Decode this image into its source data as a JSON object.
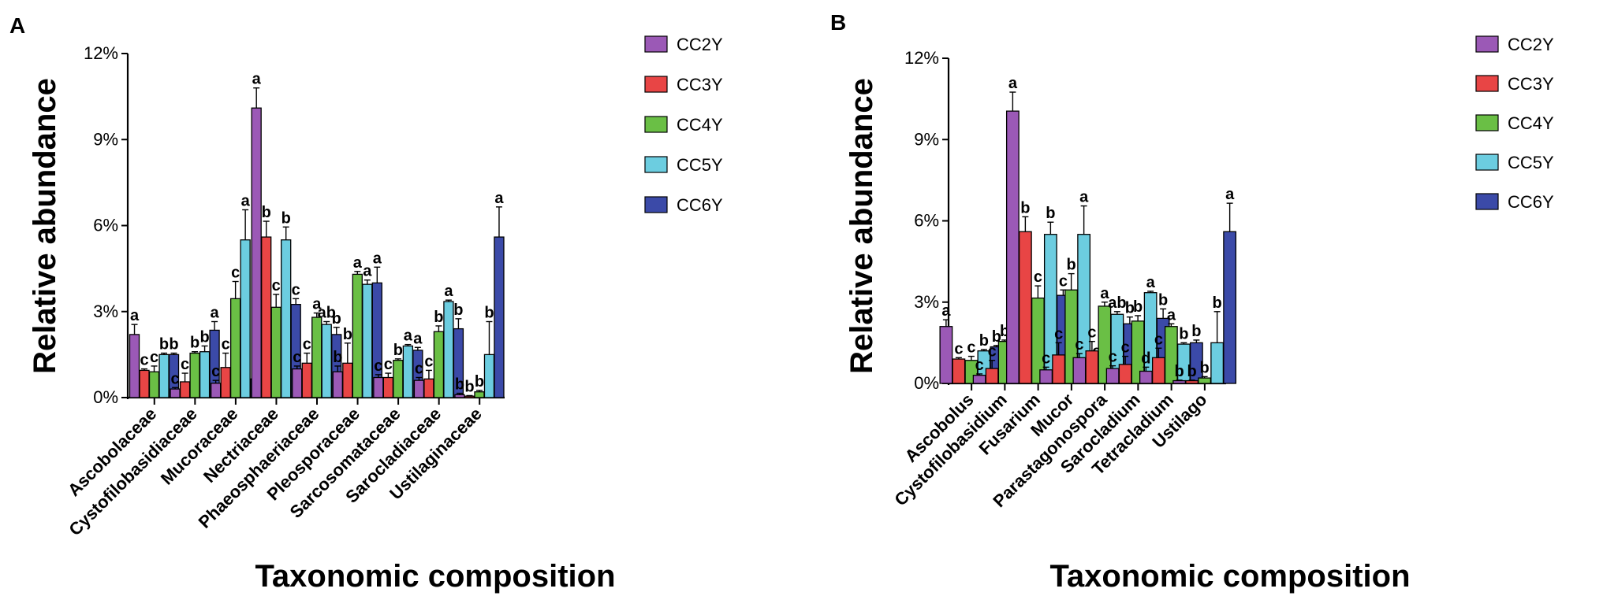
{
  "chart_data": [
    {
      "type": "bar",
      "panel_label": "A",
      "title": "",
      "xlabel": "Taxonomic composition",
      "ylabel": "Relative abundance",
      "ylim": [
        0,
        12
      ],
      "yticks": [
        0,
        3,
        6,
        9,
        12
      ],
      "ytick_labels": [
        "0%",
        "3%",
        "6%",
        "9%",
        "12%"
      ],
      "legend_position": "top-right",
      "categories": [
        "Ascobolaceae",
        "Cystofilobasidiaceae",
        "Mucoraceae",
        "Nectriaceae",
        "Phaeosphaeriaceae",
        "Pleosporaceae",
        "Sarcosomataceae",
        "Sarocladiaceae",
        "Ustilaginaceae"
      ],
      "series": [
        {
          "name": "CC2Y",
          "color": "#9b59b6",
          "values": [
            2.2,
            0.3,
            0.5,
            10.1,
            1.0,
            0.9,
            0.7,
            0.6,
            0.1
          ],
          "errors": [
            0.35,
            0.05,
            0.1,
            0.7,
            0.1,
            0.2,
            0.1,
            0.1,
            0.05
          ],
          "letters": [
            "a",
            "c",
            "c",
            "a",
            "c",
            "b",
            "c",
            "c",
            "b"
          ]
        },
        {
          "name": "CC3Y",
          "color": "#e84545",
          "values": [
            0.95,
            0.55,
            1.05,
            5.6,
            1.2,
            1.2,
            0.7,
            0.65,
            0.05
          ],
          "errors": [
            0.05,
            0.3,
            0.5,
            0.55,
            0.35,
            0.7,
            0.15,
            0.3,
            0.02
          ],
          "letters": [
            "c",
            "c",
            "c",
            "b",
            "c",
            "b",
            "c",
            "c",
            "b"
          ]
        },
        {
          "name": "CC4Y",
          "color": "#6abf45",
          "values": [
            0.9,
            1.55,
            3.45,
            3.15,
            2.8,
            4.3,
            1.3,
            2.3,
            0.2
          ],
          "errors": [
            0.2,
            0.05,
            0.6,
            0.45,
            0.15,
            0.1,
            0.05,
            0.2,
            0.05
          ],
          "letters": [
            "c",
            "b",
            "c",
            "c",
            "a",
            "a",
            "b",
            "b",
            "b"
          ]
        },
        {
          "name": "CC5Y",
          "color": "#6ccde0",
          "values": [
            1.5,
            1.6,
            5.5,
            5.5,
            2.55,
            3.95,
            1.8,
            3.35,
            1.5
          ],
          "errors": [
            0.05,
            0.2,
            1.05,
            0.45,
            0.1,
            0.15,
            0.05,
            0.05,
            1.15
          ],
          "letters": [
            "b",
            "b",
            "a",
            "b",
            "ab",
            "a",
            "a",
            "a",
            "b"
          ]
        },
        {
          "name": "CC6Y",
          "color": "#3b4aa8",
          "values": [
            1.5,
            2.35,
            0.65,
            3.25,
            2.2,
            4.0,
            1.65,
            2.4,
            5.6
          ],
          "errors": [
            0.05,
            0.3,
            0.2,
            0.2,
            0.25,
            0.55,
            0.1,
            0.35,
            1.05
          ],
          "letters": [
            "b",
            "a",
            "c",
            "c",
            "b",
            "a",
            "a",
            "b",
            "a"
          ]
        }
      ]
    },
    {
      "type": "bar",
      "panel_label": "B",
      "title": "",
      "xlabel": "Taxonomic composition",
      "ylabel": "Relative abundance",
      "ylim": [
        0,
        12
      ],
      "yticks": [
        0,
        3,
        6,
        9,
        12
      ],
      "ytick_labels": [
        "0%",
        "3%",
        "6%",
        "9%",
        "12%"
      ],
      "legend_position": "top-right",
      "categories": [
        "Ascobolus",
        "Cystofilobasidium",
        "Fusarium",
        "Mucor",
        "Parastagonospora",
        "Sarocladium",
        "Tetracladium",
        "Ustilago"
      ],
      "series": [
        {
          "name": "CC2Y",
          "color": "#9b59b6",
          "values": [
            2.1,
            0.3,
            10.05,
            0.5,
            0.95,
            0.55,
            0.45,
            0.1
          ],
          "errors": [
            0.25,
            0.05,
            0.7,
            0.1,
            0.15,
            0.1,
            0.15,
            0.02
          ],
          "letters": [
            "a",
            "c",
            "a",
            "c",
            "c",
            "c",
            "d",
            "b"
          ]
        },
        {
          "name": "CC3Y",
          "color": "#e84545",
          "values": [
            0.9,
            0.55,
            5.6,
            1.05,
            1.2,
            0.7,
            0.95,
            0.1
          ],
          "errors": [
            0.05,
            0.3,
            0.55,
            0.45,
            0.35,
            0.3,
            0.35,
            0.02
          ],
          "letters": [
            "c",
            "c",
            "b",
            "c",
            "c",
            "c",
            "c",
            "b"
          ]
        },
        {
          "name": "CC4Y",
          "color": "#6abf45",
          "values": [
            0.85,
            1.55,
            3.15,
            3.45,
            2.85,
            2.3,
            2.1,
            0.2
          ],
          "errors": [
            0.15,
            0.05,
            0.45,
            0.6,
            0.15,
            0.2,
            0.1,
            0.05
          ],
          "letters": [
            "c",
            "b",
            "c",
            "b",
            "a",
            "b",
            "a",
            "b"
          ]
        },
        {
          "name": "CC5Y",
          "color": "#6ccde0",
          "values": [
            1.2,
            1.6,
            5.5,
            5.5,
            2.55,
            3.35,
            1.45,
            1.5
          ],
          "errors": [
            0.05,
            0.2,
            0.45,
            1.05,
            0.1,
            0.05,
            0.05,
            1.15
          ],
          "letters": [
            "b",
            "b",
            "b",
            "a",
            "ab",
            "a",
            "b",
            "b"
          ]
        },
        {
          "name": "CC6Y",
          "color": "#3b4aa8",
          "values": [
            1.35,
            2.35,
            3.25,
            0.65,
            2.2,
            2.4,
            1.5,
            5.6
          ],
          "errors": [
            0.05,
            0.3,
            0.2,
            0.2,
            0.25,
            0.35,
            0.1,
            1.05
          ],
          "letters": [
            "b",
            "a",
            "c",
            "c",
            "b",
            "b",
            "b",
            "a"
          ]
        }
      ]
    }
  ]
}
